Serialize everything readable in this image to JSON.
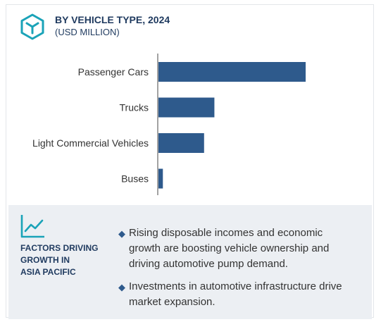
{
  "header": {
    "title": "BY VEHICLE TYPE, 2024",
    "subtitle": "(USD MILLION)"
  },
  "icons": {
    "header": "cube-icon",
    "factors": "trend-line-icon",
    "bullet": "diamond-icon"
  },
  "colors": {
    "bar": "#2e5a8c",
    "title": "#1f3a5f",
    "panel_bg": "#eceff3",
    "axis": "#444444"
  },
  "chart_data": {
    "type": "bar",
    "orientation": "horizontal",
    "title": "BY VEHICLE TYPE, 2024",
    "subtitle": "(USD MILLION)",
    "categories": [
      "Passenger Cars",
      "Trucks",
      "Light Commercial Vehicles",
      "Buses"
    ],
    "values": [
      100,
      38,
      31,
      3
    ],
    "value_scale": "relative (no numeric axis shown)",
    "xlim": [
      0,
      100
    ],
    "grid": false,
    "legend": "none"
  },
  "factors": {
    "heading_lines": [
      "FACTORS DRIVING",
      "GROWTH IN",
      "ASIA PACIFIC"
    ],
    "bullets": [
      "Rising disposable incomes and economic growth are boosting vehicle ownership and driving automotive pump demand.",
      "Investments in automotive infrastructure drive market expansion."
    ]
  }
}
